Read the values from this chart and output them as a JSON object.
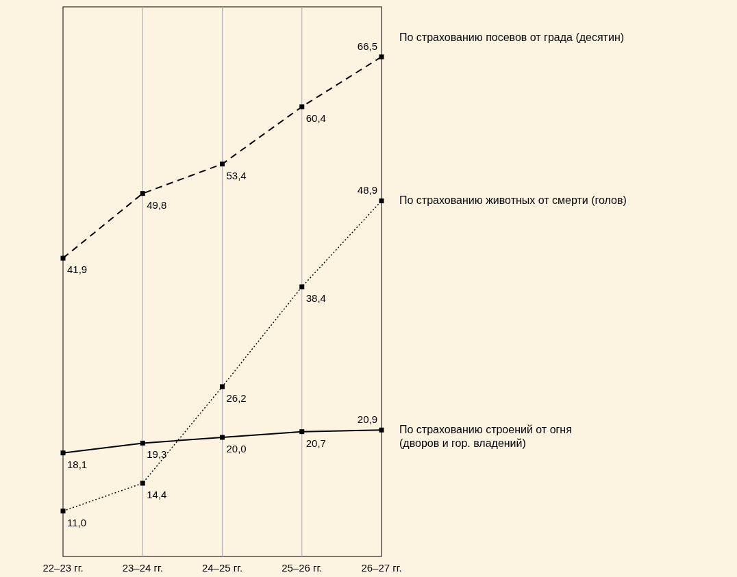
{
  "chart_data": {
    "type": "line",
    "categories": [
      "22–23 гг.",
      "23–24 гг.",
      "24–25 гг.",
      "25–26 гг.",
      "26–27 гг."
    ],
    "series": [
      {
        "name": "По страхованию посевов от града (десятин)",
        "color": "#000000",
        "line_style": "dashed",
        "values": [
          41.9,
          49.8,
          53.4,
          60.4,
          66.5
        ],
        "value_labels": [
          "41,9",
          "49,8",
          "53,4",
          "60,4",
          "66,5"
        ]
      },
      {
        "name": "По страхованию животных от смерти (голов)",
        "color": "#000000",
        "line_style": "dotted",
        "values": [
          11.0,
          14.4,
          26.2,
          38.4,
          48.9
        ],
        "value_labels": [
          "11,0",
          "14,4",
          "26,2",
          "38,4",
          "48,9"
        ]
      },
      {
        "name": "По страхованию строений от огня (дворов и гор. владений)",
        "color": "#000000",
        "line_style": "solid",
        "values": [
          18.1,
          19.3,
          20.0,
          20.7,
          20.9
        ],
        "value_labels": [
          "18,1",
          "19,3",
          "20,0",
          "20,7",
          "20,9"
        ]
      }
    ],
    "grid": "x",
    "marker": "square"
  }
}
